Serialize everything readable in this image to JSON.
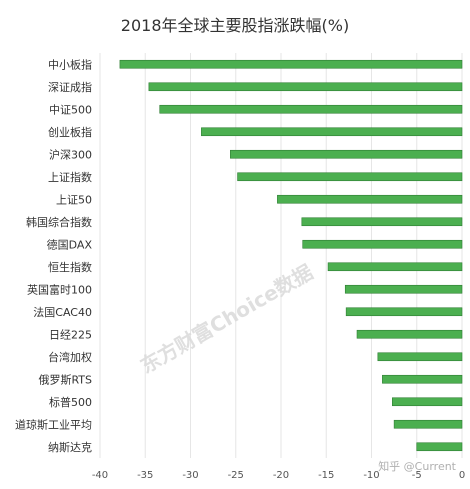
{
  "chart_data": {
    "type": "bar",
    "orientation": "horizontal",
    "title": "2018年全球主要股指涨跌幅(%)",
    "categories": [
      "中小板指",
      "深证成指",
      "中证500",
      "创业板指",
      "沪深300",
      "上证指数",
      "上证50",
      "韩国综合指数",
      "德国DAX",
      "恒生指数",
      "英国富时100",
      "法国CAC40",
      "日经225",
      "台湾加权",
      "俄罗斯RTS",
      "标普500",
      "道琼斯工业平均",
      "纳斯达克"
    ],
    "values": [
      -37.8,
      -34.6,
      -33.4,
      -28.8,
      -25.6,
      -24.8,
      -20.4,
      -17.7,
      -17.6,
      -14.8,
      -12.9,
      -12.8,
      -11.6,
      -9.3,
      -8.8,
      -7.7,
      -7.5,
      -5.0
    ],
    "xlim": [
      -40,
      0
    ],
    "xticks": [
      -40,
      -35,
      -30,
      -25,
      -20,
      -15,
      -10,
      -5,
      0
    ],
    "grid": true,
    "bar_color": "#4caf50",
    "bar_edge_color": "#2e7d32"
  },
  "watermark": "东方财富Choice数据",
  "credit": "知乎 @Current"
}
